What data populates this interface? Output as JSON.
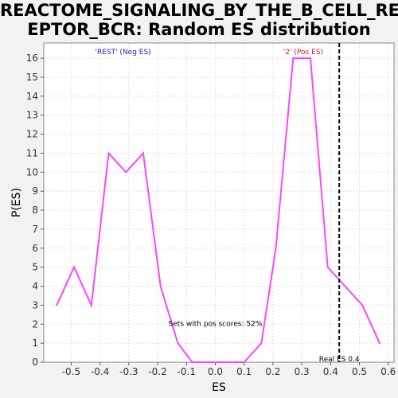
{
  "chart_data": {
    "type": "line",
    "title": "REACTOME_SIGNALING_BY_THE_B_CELL_REC\nEPTOR_BCR: Random ES distribution",
    "xlabel": "ES",
    "ylabel": "P(ES)",
    "xlim": [
      -0.595,
      0.62
    ],
    "ylim": [
      0,
      16.8
    ],
    "xticks": [
      -0.5,
      -0.4,
      -0.3,
      -0.2,
      -0.1,
      0.0,
      0.1,
      0.2,
      0.3,
      0.4,
      0.5,
      0.6
    ],
    "xtick_labels": [
      "-0.5",
      "-0.4",
      "-0.3",
      "-0.2",
      "-0.1",
      "0.0",
      "0.1",
      "0.2",
      "0.3",
      "0.4",
      "0.5",
      "0.6"
    ],
    "yticks": [
      0,
      1,
      2,
      3,
      4,
      5,
      6,
      7,
      8,
      9,
      10,
      11,
      12,
      13,
      14,
      15,
      16
    ],
    "grid": true,
    "series": [
      {
        "color": "#ff44ff",
        "x": [
          -0.55,
          -0.49,
          -0.43,
          -0.37,
          -0.31,
          -0.25,
          -0.19,
          -0.13,
          -0.08,
          -0.02,
          0.04,
          0.1,
          0.16,
          0.21,
          0.27,
          0.33,
          0.39,
          0.45,
          0.51,
          0.57
        ],
        "y": [
          3,
          5,
          3,
          11,
          10,
          11,
          4,
          1,
          0,
          0,
          0,
          0,
          1,
          6,
          16,
          16,
          5,
          4,
          3,
          1
        ]
      }
    ],
    "real_es": 0.43,
    "annotations": {
      "neg": "'REST' (Neg ES)",
      "pos": "'2' (Pos ES)",
      "sets": "Sets with pos scores: 52%",
      "real": "Real ES 0.4"
    },
    "colors": {
      "neg": "#2222cc",
      "pos": "#cc2222",
      "real_line": "#000000",
      "grid": "#e0e0e0"
    }
  }
}
